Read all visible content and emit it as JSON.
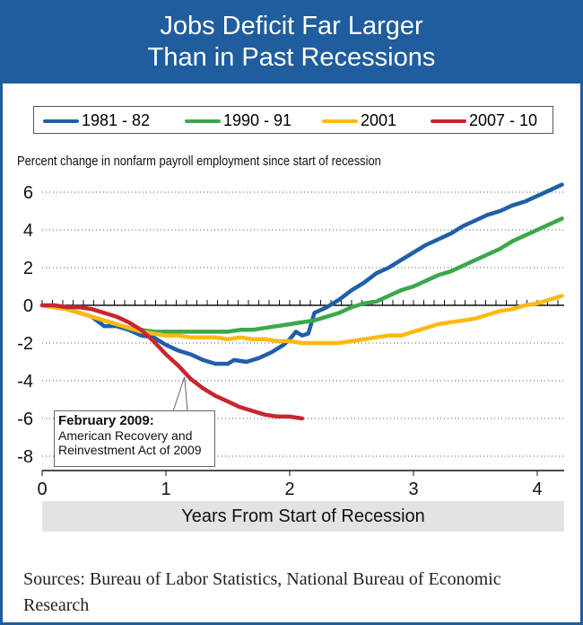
{
  "header": {
    "title_line1": "Jobs Deficit Far Larger",
    "title_line2": "Than in Past Recessions"
  },
  "footer": {
    "sources": "Sources: Bureau of Labor Statistics, National Bureau of Economic Research"
  },
  "chart_data": {
    "type": "line",
    "title": "Jobs Deficit Far Larger Than in Past Recessions",
    "ylabel": "Percent change in nonfarm payroll employment since start of recession",
    "xlabel": "Years From Start of Recession",
    "xlim": [
      0,
      4.2
    ],
    "ylim": [
      -8.5,
      7.3
    ],
    "xticks": [
      0,
      1,
      2,
      3,
      4
    ],
    "yticks": [
      -8,
      -6,
      -4,
      -2,
      0,
      2,
      4,
      6
    ],
    "legend_position": "top",
    "grid": "horizontal dotted",
    "series": [
      {
        "name": "1981 - 82",
        "color": "#1f5fa8",
        "points": [
          [
            0,
            0
          ],
          [
            0.1,
            -0.1
          ],
          [
            0.2,
            -0.2
          ],
          [
            0.3,
            -0.4
          ],
          [
            0.4,
            -0.6
          ],
          [
            0.5,
            -1.1
          ],
          [
            0.6,
            -1.1
          ],
          [
            0.7,
            -1.3
          ],
          [
            0.8,
            -1.6
          ],
          [
            0.9,
            -1.7
          ],
          [
            1.0,
            -2.1
          ],
          [
            1.1,
            -2.4
          ],
          [
            1.2,
            -2.6
          ],
          [
            1.3,
            -2.9
          ],
          [
            1.4,
            -3.1
          ],
          [
            1.5,
            -3.1
          ],
          [
            1.55,
            -2.9
          ],
          [
            1.65,
            -3.0
          ],
          [
            1.75,
            -2.8
          ],
          [
            1.85,
            -2.5
          ],
          [
            1.95,
            -2.1
          ],
          [
            2.0,
            -1.8
          ],
          [
            2.05,
            -1.4
          ],
          [
            2.1,
            -1.6
          ],
          [
            2.15,
            -1.5
          ],
          [
            2.2,
            -0.4
          ],
          [
            2.3,
            -0.1
          ],
          [
            2.4,
            0.3
          ],
          [
            2.5,
            0.8
          ],
          [
            2.6,
            1.2
          ],
          [
            2.7,
            1.7
          ],
          [
            2.8,
            2.0
          ],
          [
            2.9,
            2.4
          ],
          [
            3.0,
            2.8
          ],
          [
            3.1,
            3.2
          ],
          [
            3.2,
            3.5
          ],
          [
            3.3,
            3.8
          ],
          [
            3.4,
            4.2
          ],
          [
            3.5,
            4.5
          ],
          [
            3.6,
            4.8
          ],
          [
            3.7,
            5.0
          ],
          [
            3.8,
            5.3
          ],
          [
            3.9,
            5.5
          ],
          [
            4.0,
            5.8
          ],
          [
            4.1,
            6.1
          ],
          [
            4.2,
            6.4
          ]
        ]
      },
      {
        "name": "1990 - 91",
        "color": "#3aa84a",
        "points": [
          [
            0,
            0
          ],
          [
            0.1,
            -0.1
          ],
          [
            0.2,
            -0.2
          ],
          [
            0.3,
            -0.4
          ],
          [
            0.4,
            -0.6
          ],
          [
            0.5,
            -0.8
          ],
          [
            0.6,
            -1.0
          ],
          [
            0.7,
            -1.2
          ],
          [
            0.8,
            -1.3
          ],
          [
            0.9,
            -1.4
          ],
          [
            1.0,
            -1.4
          ],
          [
            1.1,
            -1.4
          ],
          [
            1.2,
            -1.4
          ],
          [
            1.3,
            -1.4
          ],
          [
            1.4,
            -1.4
          ],
          [
            1.5,
            -1.4
          ],
          [
            1.6,
            -1.3
          ],
          [
            1.7,
            -1.3
          ],
          [
            1.8,
            -1.2
          ],
          [
            1.9,
            -1.1
          ],
          [
            2.0,
            -1.0
          ],
          [
            2.1,
            -0.9
          ],
          [
            2.2,
            -0.8
          ],
          [
            2.3,
            -0.6
          ],
          [
            2.4,
            -0.4
          ],
          [
            2.5,
            -0.1
          ],
          [
            2.6,
            0.1
          ],
          [
            2.7,
            0.2
          ],
          [
            2.8,
            0.5
          ],
          [
            2.9,
            0.8
          ],
          [
            3.0,
            1.0
          ],
          [
            3.1,
            1.3
          ],
          [
            3.2,
            1.6
          ],
          [
            3.3,
            1.8
          ],
          [
            3.4,
            2.1
          ],
          [
            3.5,
            2.4
          ],
          [
            3.6,
            2.7
          ],
          [
            3.7,
            3.0
          ],
          [
            3.8,
            3.4
          ],
          [
            3.9,
            3.7
          ],
          [
            4.0,
            4.0
          ],
          [
            4.1,
            4.3
          ],
          [
            4.2,
            4.6
          ]
        ]
      },
      {
        "name": "2001",
        "color": "#fdb913",
        "points": [
          [
            0,
            0
          ],
          [
            0.1,
            -0.1
          ],
          [
            0.2,
            -0.2
          ],
          [
            0.3,
            -0.4
          ],
          [
            0.4,
            -0.6
          ],
          [
            0.5,
            -0.8
          ],
          [
            0.6,
            -1.0
          ],
          [
            0.7,
            -1.2
          ],
          [
            0.8,
            -1.4
          ],
          [
            0.9,
            -1.5
          ],
          [
            1.0,
            -1.6
          ],
          [
            1.1,
            -1.6
          ],
          [
            1.2,
            -1.7
          ],
          [
            1.3,
            -1.7
          ],
          [
            1.4,
            -1.7
          ],
          [
            1.5,
            -1.8
          ],
          [
            1.6,
            -1.7
          ],
          [
            1.7,
            -1.8
          ],
          [
            1.8,
            -1.8
          ],
          [
            1.9,
            -1.9
          ],
          [
            2.0,
            -1.9
          ],
          [
            2.1,
            -2.0
          ],
          [
            2.2,
            -2.0
          ],
          [
            2.3,
            -2.0
          ],
          [
            2.4,
            -2.0
          ],
          [
            2.5,
            -1.9
          ],
          [
            2.6,
            -1.8
          ],
          [
            2.7,
            -1.7
          ],
          [
            2.8,
            -1.6
          ],
          [
            2.9,
            -1.6
          ],
          [
            3.0,
            -1.4
          ],
          [
            3.1,
            -1.2
          ],
          [
            3.2,
            -1.0
          ],
          [
            3.3,
            -0.9
          ],
          [
            3.4,
            -0.8
          ],
          [
            3.5,
            -0.7
          ],
          [
            3.6,
            -0.5
          ],
          [
            3.7,
            -0.3
          ],
          [
            3.8,
            -0.2
          ],
          [
            3.9,
            0.0
          ],
          [
            4.0,
            0.1
          ],
          [
            4.1,
            0.3
          ],
          [
            4.2,
            0.5
          ]
        ]
      },
      {
        "name": "2007 - 10",
        "color": "#c8262e",
        "points": [
          [
            0,
            0
          ],
          [
            0.1,
            0.0
          ],
          [
            0.2,
            -0.1
          ],
          [
            0.3,
            -0.1
          ],
          [
            0.4,
            -0.2
          ],
          [
            0.5,
            -0.4
          ],
          [
            0.6,
            -0.6
          ],
          [
            0.7,
            -0.9
          ],
          [
            0.8,
            -1.3
          ],
          [
            0.9,
            -1.9
          ],
          [
            1.0,
            -2.6
          ],
          [
            1.1,
            -3.2
          ],
          [
            1.2,
            -3.9
          ],
          [
            1.3,
            -4.4
          ],
          [
            1.4,
            -4.8
          ],
          [
            1.5,
            -5.1
          ],
          [
            1.6,
            -5.4
          ],
          [
            1.7,
            -5.6
          ],
          [
            1.8,
            -5.8
          ],
          [
            1.9,
            -5.9
          ],
          [
            2.0,
            -5.9
          ],
          [
            2.1,
            -6.0
          ]
        ]
      }
    ],
    "annotation": {
      "title": "February 2009:",
      "line1": "American Recovery and",
      "line2": "Reinvestment Act of 2009",
      "x": 1.15,
      "y": -3.8
    }
  }
}
